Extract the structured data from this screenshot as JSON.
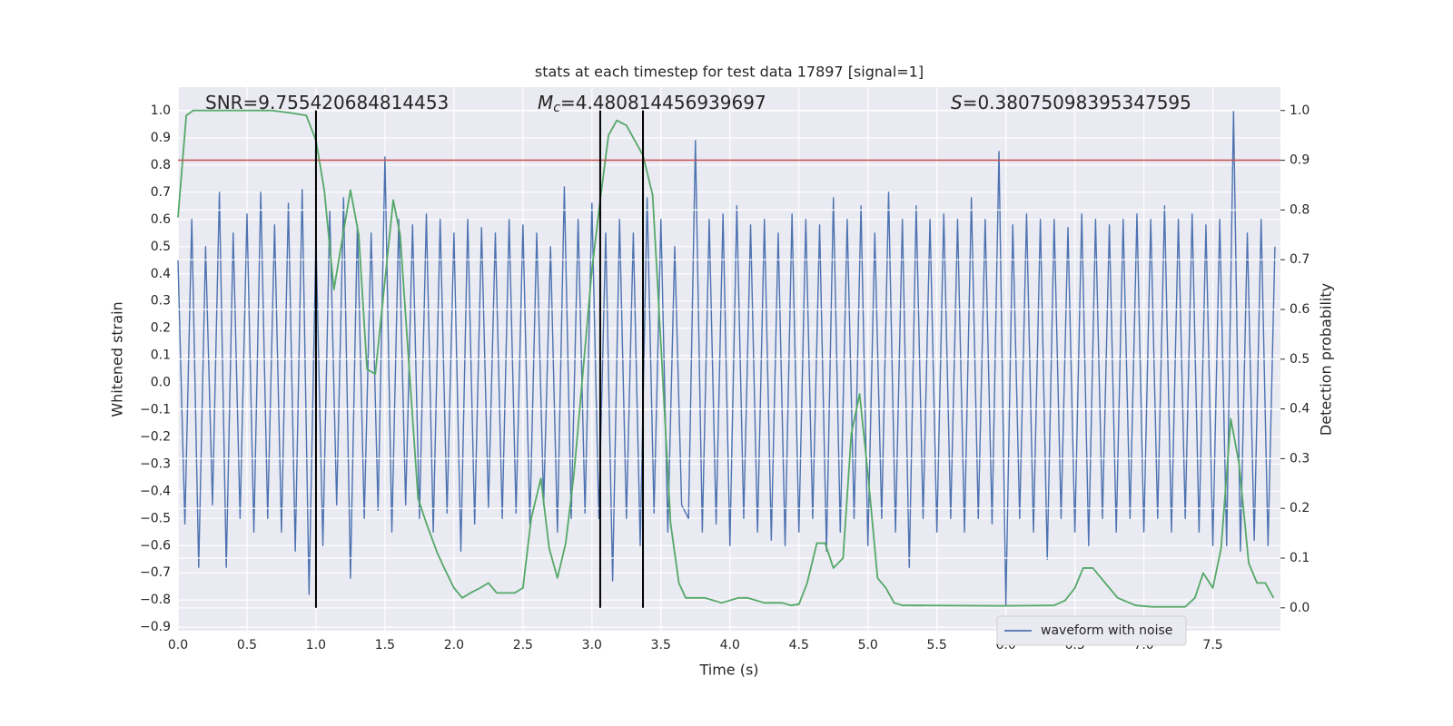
{
  "chart_data": {
    "type": "line",
    "title": "stats at each timestep for test data 17897 [signal=1]",
    "xlabel": "Time (s)",
    "ylabel": "Whitened strain",
    "y2label": "Detection probability",
    "annotations": [
      {
        "text": "SNR=9.755420684814453"
      },
      {
        "symbol": "M",
        "subscript": "c",
        "text": "=4.480814456939697"
      },
      {
        "symbol": "S",
        "text": "=0.38075098395347595"
      }
    ],
    "xlim": [
      0,
      7.99
    ],
    "ylim": [
      -0.913,
      1.087
    ],
    "y2lim": [
      -0.046,
      1.047
    ],
    "xticks": [
      {
        "value": 0,
        "label": "0.0"
      },
      0.5,
      {
        "value": 1,
        "label": "1.0"
      },
      1.5,
      {
        "value": 2,
        "label": "2.0"
      },
      2.5,
      {
        "value": 3,
        "label": "3.0"
      },
      3.5,
      {
        "value": 4,
        "label": "4.0"
      },
      4.5,
      {
        "value": 5,
        "label": "5.0"
      },
      5.5,
      {
        "value": 6,
        "label": "6.0"
      },
      6.5,
      {
        "value": 7,
        "label": "7.0"
      },
      7.5
    ],
    "yticks": [
      {
        "value": -0.9,
        "label": "−0.9"
      },
      {
        "value": -0.8,
        "label": "−0.8"
      },
      {
        "value": -0.7,
        "label": "−0.7"
      },
      {
        "value": -0.6,
        "label": "−0.6"
      },
      {
        "value": -0.5,
        "label": "−0.5"
      },
      {
        "value": -0.4,
        "label": "−0.4"
      },
      {
        "value": -0.3,
        "label": "−0.3"
      },
      {
        "value": -0.2,
        "label": "−0.2"
      },
      {
        "value": -0.1,
        "label": "−0.1"
      },
      {
        "value": 0,
        "label": "0.0"
      },
      0.1,
      0.2,
      0.3,
      0.4,
      0.5,
      0.6,
      0.7,
      0.8,
      0.9,
      {
        "value": 1,
        "label": "1.0"
      }
    ],
    "y2ticks": [
      {
        "value": 0,
        "label": "0.0"
      },
      0.1,
      0.2,
      0.3,
      0.4,
      0.5,
      0.6,
      0.7,
      0.8,
      0.9,
      {
        "value": 1,
        "label": "1.0"
      }
    ],
    "grid": true,
    "legend": "lower right",
    "series": [
      {
        "name": "waveform with noise",
        "color": "#4c72b0",
        "x": [
          0,
          0.05,
          0.1,
          0.15,
          0.2,
          0.25,
          0.3,
          0.35,
          0.4,
          0.45,
          0.5,
          0.55,
          0.6,
          0.65,
          0.7,
          0.75,
          0.8,
          0.85,
          0.9,
          0.95,
          1,
          1.05,
          1.1,
          1.15,
          1.2,
          1.25,
          1.3,
          1.35,
          1.4,
          1.45,
          1.5,
          1.55,
          1.6,
          1.65,
          1.7,
          1.75,
          1.8,
          1.85,
          1.9,
          1.95,
          2,
          2.05,
          2.1,
          2.15,
          2.2,
          2.25,
          2.3,
          2.35,
          2.4,
          2.45,
          2.5,
          2.55,
          2.6,
          2.65,
          2.7,
          2.75,
          2.8,
          2.85,
          2.9,
          2.95,
          3,
          3.05,
          3.1,
          3.15,
          3.2,
          3.25,
          3.3,
          3.35,
          3.4,
          3.45,
          3.5,
          3.55,
          3.6,
          3.65,
          3.7,
          3.75,
          3.8,
          3.85,
          3.9,
          3.95,
          4,
          4.05,
          4.1,
          4.15,
          4.2,
          4.25,
          4.3,
          4.35,
          4.4,
          4.45,
          4.5,
          4.55,
          4.6,
          4.65,
          4.7,
          4.75,
          4.8,
          4.85,
          4.9,
          4.95,
          5,
          5.05,
          5.1,
          5.15,
          5.2,
          5.25,
          5.3,
          5.35,
          5.4,
          5.45,
          5.5,
          5.55,
          5.6,
          5.65,
          5.7,
          5.75,
          5.8,
          5.85,
          5.9,
          5.95,
          6,
          6.05,
          6.1,
          6.15,
          6.2,
          6.25,
          6.3,
          6.35,
          6.4,
          6.45,
          6.5,
          6.55,
          6.6,
          6.65,
          6.7,
          6.75,
          6.8,
          6.85,
          6.9,
          6.95,
          7,
          7.05,
          7.1,
          7.15,
          7.2,
          7.25,
          7.3,
          7.35,
          7.4,
          7.45,
          7.5,
          7.55,
          7.6,
          7.65,
          7.7,
          7.75,
          7.8,
          7.85,
          7.9,
          7.95
        ],
        "values": [
          0.45,
          -0.52,
          0.6,
          -0.68,
          0.5,
          -0.45,
          0.7,
          -0.68,
          0.55,
          -0.5,
          0.62,
          -0.55,
          0.7,
          -0.5,
          0.58,
          -0.55,
          0.66,
          -0.62,
          0.71,
          -0.78,
          0.53,
          -0.6,
          0.63,
          -0.45,
          0.68,
          -0.72,
          0.58,
          -0.5,
          0.55,
          -0.47,
          0.83,
          -0.55,
          0.6,
          -0.45,
          0.58,
          -0.5,
          0.62,
          -0.55,
          0.6,
          -0.48,
          0.55,
          -0.62,
          0.6,
          -0.52,
          0.57,
          -0.46,
          0.55,
          -0.5,
          0.6,
          -0.48,
          0.58,
          -0.52,
          0.55,
          -0.45,
          0.5,
          -0.55,
          0.72,
          -0.5,
          0.6,
          -0.48,
          0.66,
          -0.5,
          0.55,
          -0.73,
          0.6,
          -0.5,
          0.55,
          -0.6,
          0.68,
          -0.48,
          0.6,
          -0.55,
          0.5,
          -0.45,
          -0.5,
          0.89,
          -0.55,
          0.6,
          -0.52,
          0.62,
          -0.6,
          0.65,
          -0.5,
          0.58,
          -0.55,
          0.6,
          -0.58,
          0.55,
          -0.6,
          0.62,
          -0.55,
          0.6,
          -0.5,
          0.58,
          -0.62,
          0.68,
          -0.55,
          0.6,
          -0.5,
          0.65,
          -0.6,
          0.55,
          -0.5,
          0.7,
          -0.55,
          0.6,
          -0.68,
          0.65,
          -0.5,
          0.6,
          -0.55,
          0.62,
          -0.5,
          0.6,
          -0.55,
          0.68,
          -0.5,
          0.6,
          -0.52,
          0.85,
          -0.82,
          0.58,
          -0.5,
          0.62,
          -0.55,
          0.6,
          -0.65,
          0.6,
          -0.5,
          0.57,
          -0.55,
          0.62,
          -0.6,
          0.6,
          -0.5,
          0.58,
          -0.55,
          0.6,
          -0.5,
          0.62,
          -0.55,
          0.6,
          -0.5,
          0.65,
          -0.55,
          0.6,
          -0.5,
          0.62,
          -0.55,
          0.58,
          -0.6,
          0.6,
          -0.6,
          1.0,
          -0.62,
          0.55,
          -0.58,
          0.6,
          -0.6,
          0.5
        ]
      },
      {
        "color": "#55a868",
        "axis": "y2",
        "x": [
          0,
          0.06,
          0.11,
          0.68,
          0.82,
          0.93,
          1.0,
          1.06,
          1.13,
          1.25,
          1.31,
          1.37,
          1.43,
          1.56,
          1.61,
          1.74,
          1.8,
          1.88,
          1.93,
          2.0,
          2.06,
          2.12,
          2.19,
          2.25,
          2.31,
          2.37,
          2.44,
          2.5,
          2.56,
          2.63,
          2.69,
          2.75,
          2.81,
          2.87,
          2.94,
          3.0,
          3.06,
          3.12,
          3.18,
          3.25,
          3.31,
          3.37,
          3.44,
          3.5,
          3.57,
          3.63,
          3.68,
          3.75,
          3.82,
          3.94,
          4.0,
          4.06,
          4.13,
          4.25,
          4.38,
          4.44,
          4.5,
          4.56,
          4.63,
          4.69,
          4.75,
          4.82,
          4.88,
          4.94,
          5.0,
          5.07,
          5.13,
          5.19,
          5.25,
          5.98,
          6.35,
          6.43,
          6.5,
          6.56,
          6.63,
          6.69,
          6.75,
          6.81,
          6.94,
          7.06,
          7.3,
          7.37,
          7.43,
          7.5,
          7.56,
          7.63,
          7.69,
          7.76,
          7.82,
          7.88,
          7.94
        ],
        "values": [
          0.785,
          0.99,
          1.0,
          1.0,
          0.995,
          0.99,
          0.94,
          0.84,
          0.64,
          0.84,
          0.75,
          0.48,
          0.47,
          0.82,
          0.75,
          0.22,
          0.17,
          0.11,
          0.08,
          0.04,
          0.02,
          0.03,
          0.04,
          0.05,
          0.03,
          0.03,
          0.03,
          0.04,
          0.18,
          0.26,
          0.12,
          0.06,
          0.13,
          0.27,
          0.49,
          0.68,
          0.82,
          0.95,
          0.98,
          0.97,
          0.94,
          0.91,
          0.83,
          0.53,
          0.17,
          0.05,
          0.02,
          0.02,
          0.02,
          0.01,
          0.015,
          0.02,
          0.02,
          0.01,
          0.01,
          0.005,
          0.007,
          0.05,
          0.13,
          0.13,
          0.08,
          0.1,
          0.35,
          0.43,
          0.27,
          0.06,
          0.04,
          0.01,
          0.005,
          0.004,
          0.005,
          0.015,
          0.04,
          0.08,
          0.08,
          0.06,
          0.04,
          0.02,
          0.005,
          0.002,
          0.002,
          0.02,
          0.07,
          0.04,
          0.12,
          0.38,
          0.29,
          0.09,
          0.05,
          0.05,
          0.02
        ]
      }
    ],
    "threshold": {
      "value": 0.9,
      "axis": "y2",
      "color": "#c44e52"
    },
    "markers": {
      "x": [
        1.0,
        3.06,
        3.37
      ],
      "color": "#000000"
    }
  }
}
